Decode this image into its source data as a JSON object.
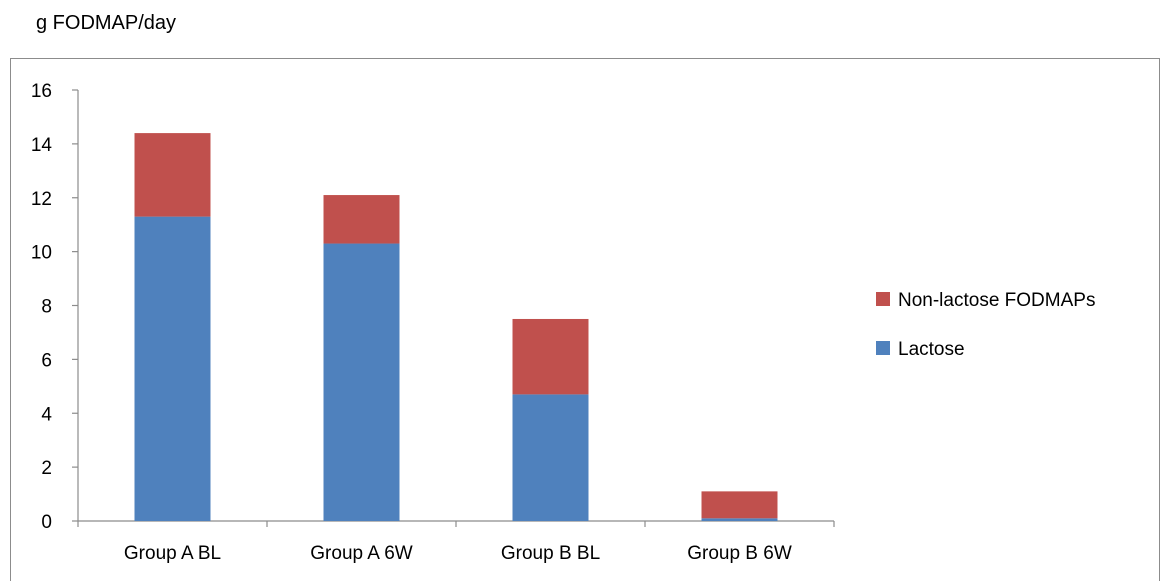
{
  "chart_data": {
    "type": "bar",
    "stacked": true,
    "ylabel": "g FODMAP/day",
    "categories": [
      "Group A BL",
      "Group A 6W",
      "Group B BL",
      "Group B 6W"
    ],
    "ylim": [
      0,
      16
    ],
    "yticks": [
      0,
      2,
      4,
      6,
      8,
      10,
      12,
      14,
      16
    ],
    "series": [
      {
        "name": "Lactose",
        "color": "#4f81bd",
        "values": [
          11.3,
          10.3,
          4.7,
          0.1
        ]
      },
      {
        "name": "Non-lactose FODMAPs",
        "color": "#c0504d",
        "values": [
          3.1,
          1.8,
          2.8,
          1.0
        ]
      }
    ],
    "legend": {
      "position": "right",
      "entries": [
        "Non-lactose FODMAPs",
        "Lactose"
      ]
    },
    "grid": false
  }
}
